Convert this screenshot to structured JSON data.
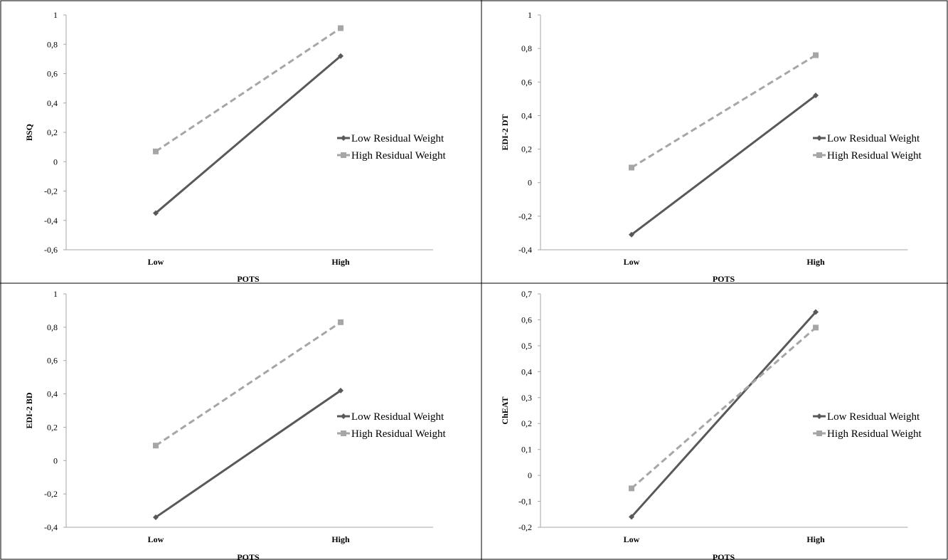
{
  "colors": {
    "low_series": "#595959",
    "high_series": "#a6a6a6",
    "axis": "#a6a6a6",
    "border": "#000000"
  },
  "chart_data": [
    {
      "type": "line",
      "categories": [
        "Low",
        "High"
      ],
      "xlabel": "POTS",
      "ylabel": "BSQ",
      "ylim": [
        -0.6,
        1
      ],
      "yticks": [
        -0.6,
        -0.4,
        -0.2,
        0,
        0.2,
        0.4,
        0.6,
        0.8,
        1
      ],
      "ytick_labels": [
        "-0,6",
        "-0,4",
        "-0,2",
        "0",
        "0,2",
        "0,4",
        "0,6",
        "0,8",
        "1"
      ],
      "grid": false,
      "legend": "right",
      "series": [
        {
          "name": "Low Residual Weight",
          "values": [
            -0.35,
            0.72
          ],
          "style": "solid",
          "marker": "diamond"
        },
        {
          "name": "High Residual Weight",
          "values": [
            0.07,
            0.91
          ],
          "style": "dashed",
          "marker": "square"
        }
      ]
    },
    {
      "type": "line",
      "categories": [
        "Low",
        "High"
      ],
      "xlabel": "POTS",
      "ylabel": "EDI-2 DT",
      "ylim": [
        -0.4,
        1
      ],
      "yticks": [
        -0.4,
        -0.2,
        0,
        0.2,
        0.4,
        0.6,
        0.8,
        1
      ],
      "ytick_labels": [
        "-0,4",
        "-0,2",
        "0",
        "0,2",
        "0,4",
        "0,6",
        "0,8",
        "1"
      ],
      "grid": false,
      "legend": "right",
      "series": [
        {
          "name": "Low Residual Weight",
          "values": [
            -0.31,
            0.52
          ],
          "style": "solid",
          "marker": "diamond"
        },
        {
          "name": "High Residual Weight",
          "values": [
            0.09,
            0.76
          ],
          "style": "dashed",
          "marker": "square"
        }
      ]
    },
    {
      "type": "line",
      "categories": [
        "Low",
        "High"
      ],
      "xlabel": "POTS",
      "ylabel": "EDI-2 BD",
      "ylim": [
        -0.4,
        1
      ],
      "yticks": [
        -0.4,
        -0.2,
        0,
        0.2,
        0.4,
        0.6,
        0.8,
        1
      ],
      "ytick_labels": [
        "-0,4",
        "-0,2",
        "0",
        "0,2",
        "0,4",
        "0,6",
        "0,8",
        "1"
      ],
      "grid": false,
      "legend": "right",
      "series": [
        {
          "name": "Low Residual Weight",
          "values": [
            -0.34,
            0.42
          ],
          "style": "solid",
          "marker": "diamond"
        },
        {
          "name": "High Residual Weight",
          "values": [
            0.09,
            0.83
          ],
          "style": "dashed",
          "marker": "square"
        }
      ]
    },
    {
      "type": "line",
      "categories": [
        "Low",
        "High"
      ],
      "xlabel": "POTS",
      "ylabel": "ChEAT",
      "ylim": [
        -0.2,
        0.7
      ],
      "yticks": [
        -0.2,
        -0.1,
        0,
        0.1,
        0.2,
        0.3,
        0.4,
        0.5,
        0.6,
        0.7
      ],
      "ytick_labels": [
        "-0,2",
        "-0,1",
        "0",
        "0,1",
        "0,2",
        "0,3",
        "0,4",
        "0,5",
        "0,6",
        "0,7"
      ],
      "grid": false,
      "legend": "right",
      "series": [
        {
          "name": "Low Residual Weight",
          "values": [
            -0.16,
            0.63
          ],
          "style": "solid",
          "marker": "diamond"
        },
        {
          "name": "High Residual Weight",
          "values": [
            -0.05,
            0.57
          ],
          "style": "dashed",
          "marker": "square"
        }
      ]
    }
  ]
}
